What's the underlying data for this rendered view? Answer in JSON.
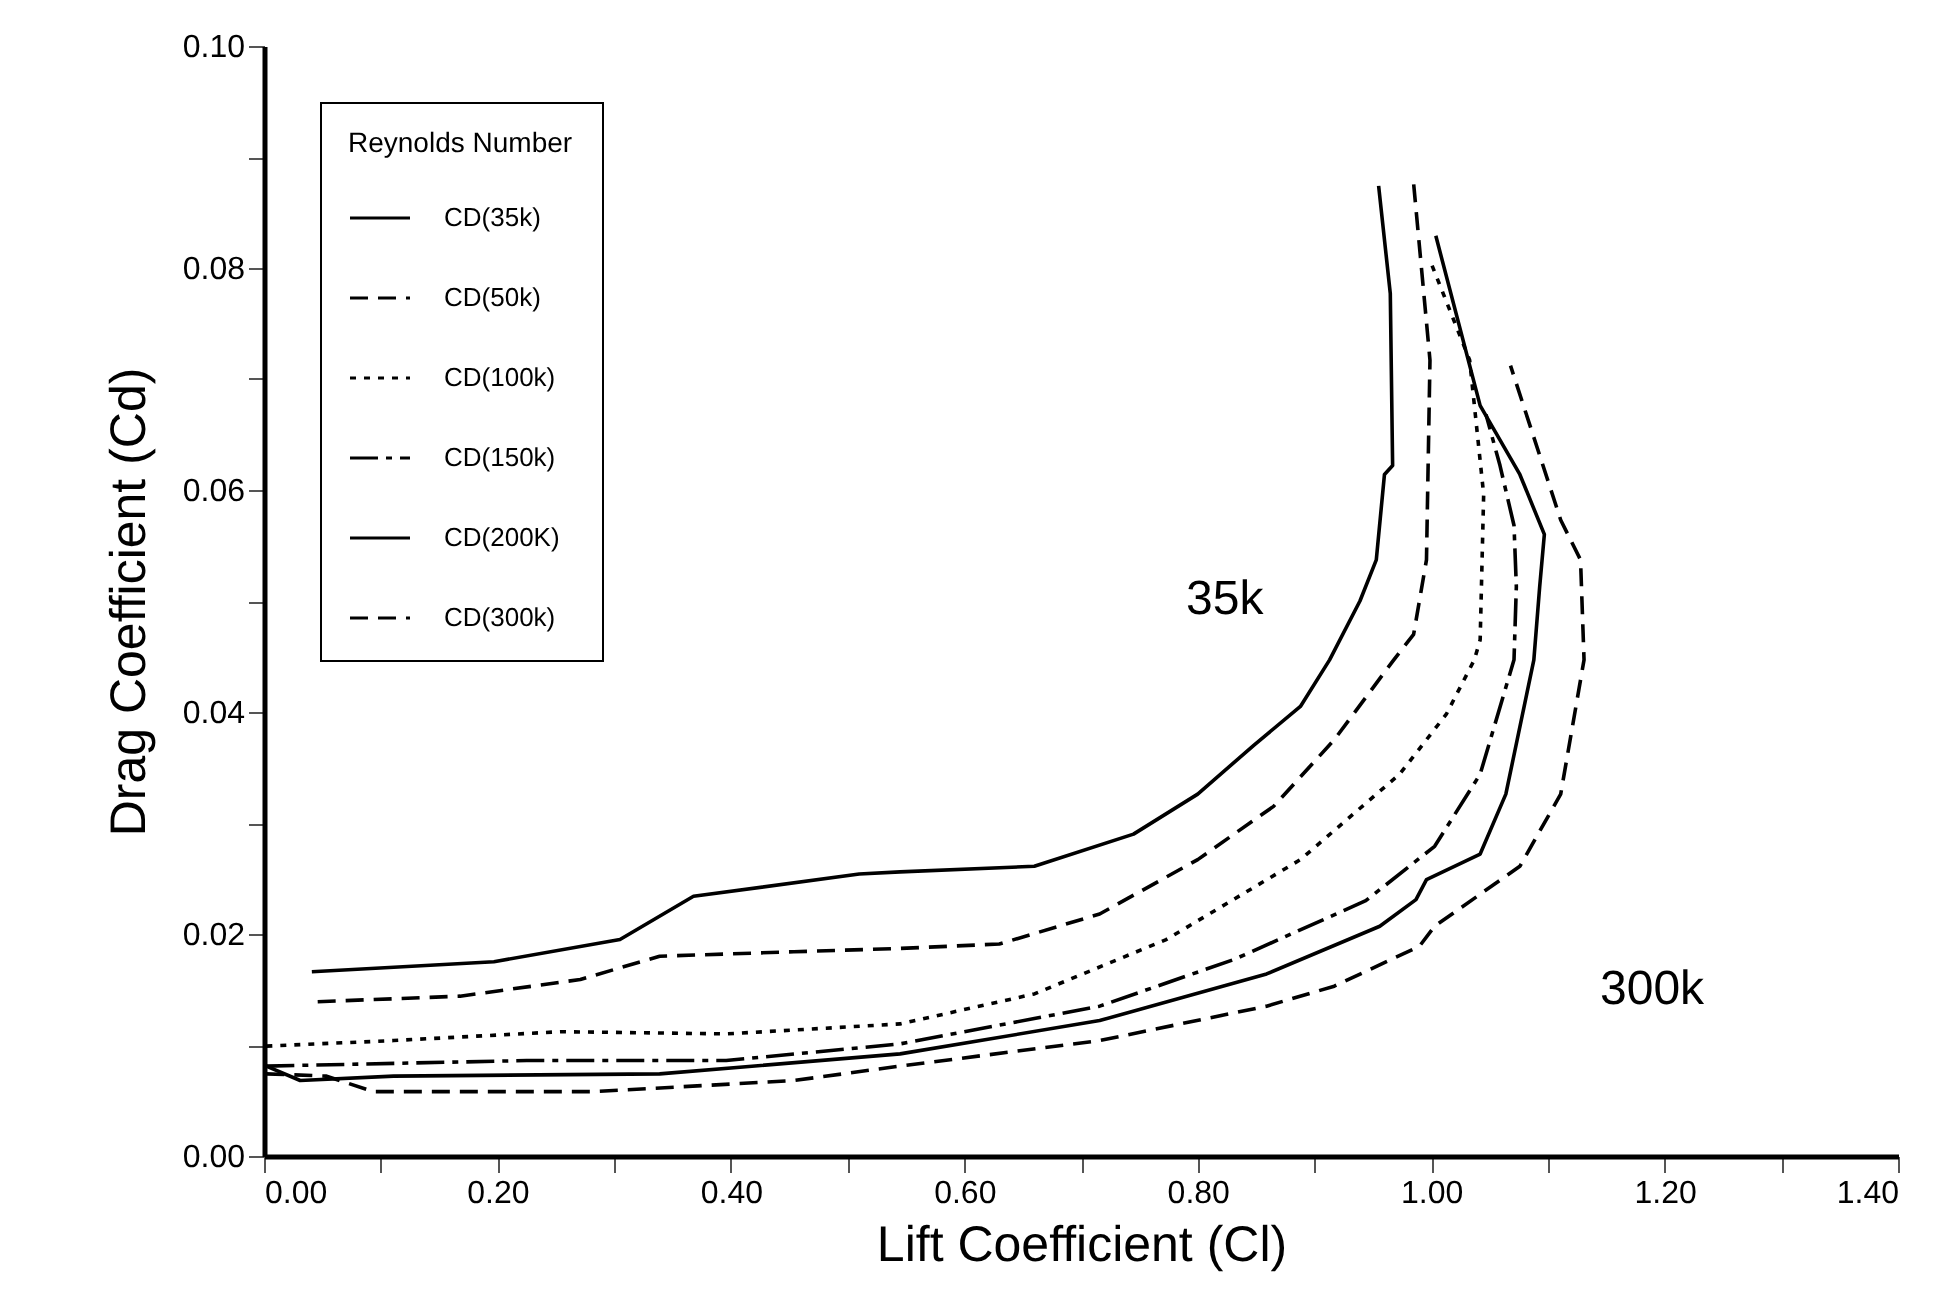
{
  "chart_data": {
    "type": "line",
    "xlabel": "Lift Coefficient (Cl)",
    "ylabel": "Drag Coefficient (Cd)",
    "legend_title": "Reynolds Number",
    "xlim": [
      0,
      1.4
    ],
    "ylim": [
      0,
      0.1
    ],
    "xticks": [
      {
        "value": 0,
        "label": "0.00"
      },
      {
        "value": 0.1,
        "label": null
      },
      {
        "value": 0.2,
        "label": "0.20"
      },
      {
        "value": 0.3,
        "label": null
      },
      {
        "value": 0.4,
        "label": "0.40"
      },
      {
        "value": 0.5,
        "label": null
      },
      {
        "value": 0.6,
        "label": "0.60"
      },
      {
        "value": 0.7,
        "label": null
      },
      {
        "value": 0.8,
        "label": "0.80"
      },
      {
        "value": 0.9,
        "label": null
      },
      {
        "value": 1.0,
        "label": "1.00"
      },
      {
        "value": 1.1,
        "label": null
      },
      {
        "value": 1.2,
        "label": "1.20"
      },
      {
        "value": 1.3,
        "label": null
      },
      {
        "value": 1.4,
        "label": "1.40"
      }
    ],
    "yticks": [
      {
        "value": 0,
        "label": "0.00"
      },
      {
        "value": 0.01,
        "label": null
      },
      {
        "value": 0.02,
        "label": "0.02"
      },
      {
        "value": 0.03,
        "label": null
      },
      {
        "value": 0.04,
        "label": "0.04"
      },
      {
        "value": 0.05,
        "label": null
      },
      {
        "value": 0.06,
        "label": "0.06"
      },
      {
        "value": 0.07,
        "label": null
      },
      {
        "value": 0.08,
        "label": "0.08"
      },
      {
        "value": 0.09,
        "label": null
      },
      {
        "value": 0.1,
        "label": "0.10"
      }
    ],
    "legend": "top left",
    "grid": false,
    "series": [
      {
        "name": "CD(35k)",
        "color": "#000000",
        "line_style": "solid",
        "x": [
          0.041,
          0.197,
          0.305,
          0.368,
          0.51,
          0.545,
          0.66,
          0.745,
          0.8,
          0.848,
          0.888,
          0.913,
          0.939,
          0.953,
          0.96,
          0.967,
          0.965,
          0.955
        ],
        "values": [
          0.0166,
          0.0175,
          0.0195,
          0.0234,
          0.0254,
          0.0256,
          0.0261,
          0.029,
          0.0326,
          0.037,
          0.0405,
          0.0447,
          0.05,
          0.0537,
          0.0614,
          0.0622,
          0.0777,
          0.0874
        ]
      },
      {
        "name": "CD(50k)",
        "color": "#000000",
        "line_style": "dashed",
        "x": [
          0.046,
          0.168,
          0.271,
          0.339,
          0.454,
          0.545,
          0.63,
          0.716,
          0.8,
          0.865,
          0.917,
          0.968,
          0.985,
          0.996,
          0.999,
          0.985
        ],
        "values": [
          0.0139,
          0.0144,
          0.0159,
          0.018,
          0.0184,
          0.0187,
          0.0191,
          0.0218,
          0.0267,
          0.0315,
          0.0375,
          0.0447,
          0.047,
          0.0537,
          0.0717,
          0.0876
        ]
      },
      {
        "name": "CD(100k)",
        "color": "#000000",
        "line_style": "dotted",
        "x": [
          0.002,
          0.111,
          0.254,
          0.396,
          0.545,
          0.66,
          0.773,
          0.888,
          0.973,
          1.013,
          1.037,
          1.042,
          1.045,
          1.033,
          0.999
        ],
        "values": [
          0.0099,
          0.0104,
          0.0112,
          0.011,
          0.0119,
          0.0146,
          0.0195,
          0.0267,
          0.0344,
          0.0398,
          0.0447,
          0.0465,
          0.0596,
          0.0717,
          0.0807
        ]
      },
      {
        "name": "CD(150k)",
        "color": "#000000",
        "line_style": "dashdot",
        "x": [
          0.002,
          0.225,
          0.396,
          0.545,
          0.716,
          0.831,
          0.944,
          1.003,
          1.042,
          1.071,
          1.073,
          1.071,
          1.059,
          1.047
        ],
        "values": [
          0.0081,
          0.0086,
          0.0086,
          0.0101,
          0.0135,
          0.0177,
          0.023,
          0.0279,
          0.0344,
          0.0447,
          0.0513,
          0.0568,
          0.0622,
          0.0668
        ]
      },
      {
        "name": "CD(200K)",
        "color": "#000000",
        "line_style": "solid",
        "x": [
          0.002,
          0.031,
          0.111,
          0.339,
          0.545,
          0.716,
          0.859,
          0.956,
          0.987,
          0.996,
          1.042,
          1.064,
          1.088,
          1.093,
          1.097,
          1.076,
          1.042,
          1.004
        ],
        "values": [
          0.0081,
          0.0068,
          0.0072,
          0.0074,
          0.0092,
          0.0122,
          0.0164,
          0.0207,
          0.0231,
          0.0249,
          0.0272,
          0.0326,
          0.0447,
          0.0513,
          0.056,
          0.0614,
          0.0676,
          0.0829
        ]
      },
      {
        "name": "CD(300k)",
        "color": "#000000",
        "line_style": "dashed",
        "x": [
          0.002,
          0.053,
          0.094,
          0.283,
          0.454,
          0.545,
          0.716,
          0.859,
          0.917,
          0.99,
          1.003,
          1.076,
          1.111,
          1.131,
          1.128,
          1.111,
          1.068
        ],
        "values": [
          0.0074,
          0.0072,
          0.0058,
          0.0058,
          0.0068,
          0.0081,
          0.0104,
          0.0135,
          0.0153,
          0.0189,
          0.0207,
          0.0261,
          0.0326,
          0.0447,
          0.0537,
          0.0573,
          0.0712
        ]
      }
    ],
    "annotations": [
      "35k",
      "300k"
    ]
  }
}
